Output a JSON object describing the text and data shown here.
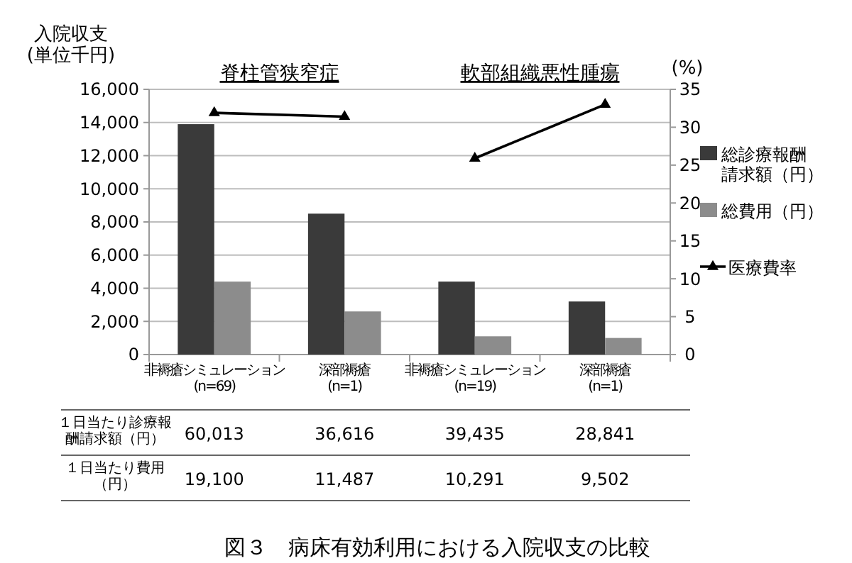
{
  "chart_data": {
    "type": "bar",
    "title": "図３　病床有効利用における入院収支の比較",
    "ylabel": "入院収支\n(単位千円)",
    "y2label": "(%)",
    "categories": [
      "非褥瘡シミュレーション\n(n=69)",
      "深部褥瘡\n(n=1)",
      "非褥瘡シミュレーション\n(n=19)",
      "深部褥瘡\n(n=1)"
    ],
    "series": [
      {
        "name": "総診療報酬請求額（円）",
        "color": "#3a3a3a",
        "values": [
          13900,
          8500,
          4400,
          3200
        ]
      },
      {
        "name": "総費用（円）",
        "color": "#8c8c8c",
        "values": [
          4400,
          2600,
          1100,
          1000
        ]
      },
      {
        "name": "医療費率",
        "type": "line",
        "axis": "y2",
        "color": "#000000",
        "values": [
          31.9,
          31.4,
          null,
          null
        ]
      },
      {
        "type": "line",
        "axis": "y2",
        "color": "#000000",
        "values": [
          null,
          null,
          25.9,
          33.0
        ]
      }
    ],
    "ylim": [
      0,
      16000
    ],
    "yticks": [
      {
        "value": 0,
        "label": "0"
      },
      {
        "value": 2000,
        "label": "2,000"
      },
      {
        "value": 4000,
        "label": "4,000"
      },
      {
        "value": 6000,
        "label": "6,000"
      },
      {
        "value": 8000,
        "label": "8,000"
      },
      {
        "value": 10000,
        "label": "10,000"
      },
      {
        "value": 12000,
        "label": "12,000"
      },
      {
        "value": 14000,
        "label": "14,000"
      },
      {
        "value": 16000,
        "label": "16,000"
      }
    ],
    "y2lim": [
      0,
      35
    ],
    "y2ticks": [
      0,
      5,
      10,
      15,
      20,
      25,
      30,
      35
    ],
    "grid": "y",
    "legend": "right",
    "marker": "triangle",
    "annotations": [
      "脊柱管狭窄症",
      "軟部組織悪性腫瘍",
      "１日当たり診療報酬請求額（円）",
      "60,013",
      "36,616",
      "39,435",
      "28,841",
      "１日当たり費用（円）",
      "19,100",
      "11,487",
      "10,291",
      "9,502"
    ]
  }
}
